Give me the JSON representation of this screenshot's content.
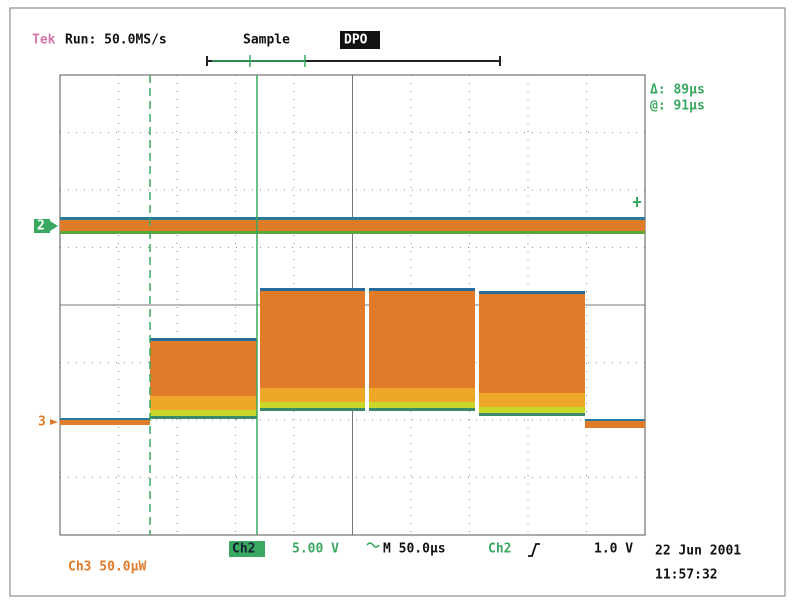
{
  "header": {
    "brand": "Tek",
    "run": "Run: 50.0MS/s",
    "mode": "Sample",
    "dpo": "DPO"
  },
  "cursors": {
    "delta": "Δ: 89µs",
    "at": "@: 91µs"
  },
  "markers": {
    "ch2": "2",
    "ch3": "3"
  },
  "footer": {
    "ch2_label": "Ch2",
    "ch2_scale": "5.00 V",
    "timebase": "M 50.0µs",
    "trigger_source": "Ch2",
    "trigger_level": "1.0 V",
    "ch3": "Ch3  50.0µW",
    "date": "22 Jun 2001",
    "time": "11:57:32"
  }
}
